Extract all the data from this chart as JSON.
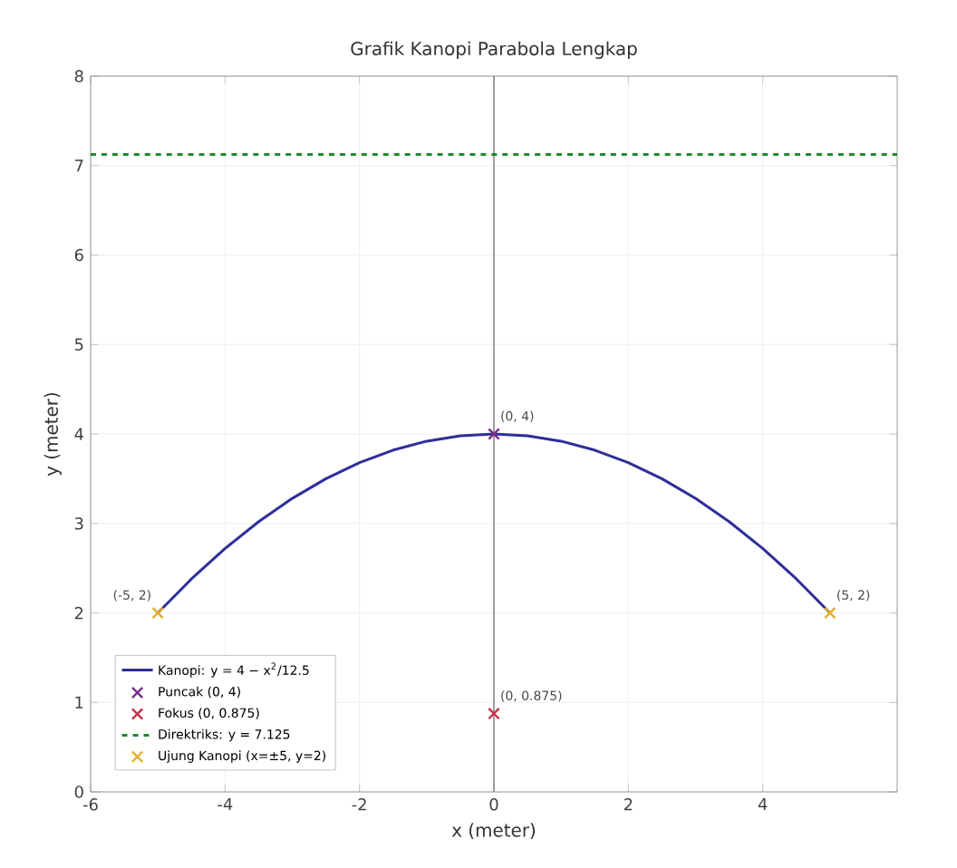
{
  "chart_data": {
    "type": "line",
    "title": "Grafik Kanopi Parabola Lengkap",
    "xlabel": "x (meter)",
    "ylabel": "y (meter)",
    "xlim": [
      -6,
      6
    ],
    "ylim": [
      0,
      8
    ],
    "xticks": [
      -6,
      -4,
      -2,
      0,
      2,
      4
    ],
    "yticks": [
      0,
      1,
      2,
      3,
      4,
      5,
      6,
      7,
      8
    ],
    "grid": true,
    "legend": "bottom left",
    "series": [
      {
        "name": "Kanopi: y = 4 − x$^{2}$/12.5",
        "color": "#2e2e9a",
        "marker": "none",
        "line_style": "solid",
        "x": [
          -5,
          -4.5,
          -4,
          -3.5,
          -3,
          -2.5,
          -2,
          -1.5,
          -1,
          -0.5,
          0,
          0.5,
          1,
          1.5,
          2,
          2.5,
          3,
          3.5,
          4,
          4.5,
          5
        ],
        "values": [
          2,
          2.38,
          2.72,
          3.02,
          3.28,
          3.5,
          3.68,
          3.82,
          3.92,
          3.98,
          4,
          3.98,
          3.92,
          3.82,
          3.68,
          3.5,
          3.28,
          3.02,
          2.72,
          2.38,
          2
        ]
      },
      {
        "name": "Puncak (0, 4)",
        "type": "scatter",
        "color": "#7b2d8e",
        "marker": "cross",
        "x": [
          0
        ],
        "values": [
          4
        ]
      },
      {
        "name": "Fokus (0, 0.875)",
        "type": "scatter",
        "color": "#c8304a",
        "marker": "cross",
        "x": [
          0
        ],
        "values": [
          0.875
        ]
      },
      {
        "name": "Direktriks: y = 7.125",
        "color": "#1f8a2e",
        "marker": "none",
        "line_style": "dashed",
        "x": [
          -6,
          6
        ],
        "values": [
          7.125,
          7.125
        ]
      },
      {
        "name": "Ujung Kanopi (x=±5, y=2)",
        "type": "scatter",
        "color": "#e0b030",
        "marker": "cross",
        "x": [
          -5,
          5
        ],
        "values": [
          2,
          2
        ]
      }
    ],
    "ref_lines": [
      {
        "axis": "x",
        "value": 0,
        "color": "#888888"
      }
    ],
    "annotations": [
      {
        "text": "(0, 4)",
        "x": 0,
        "y": 4
      },
      {
        "text": "(0, 0.875)",
        "x": 0,
        "y": 0.875
      },
      {
        "text": "(-5, 2)",
        "x": -5,
        "y": 2
      },
      {
        "text": "(5, 2)",
        "x": 5,
        "y": 2
      }
    ]
  }
}
